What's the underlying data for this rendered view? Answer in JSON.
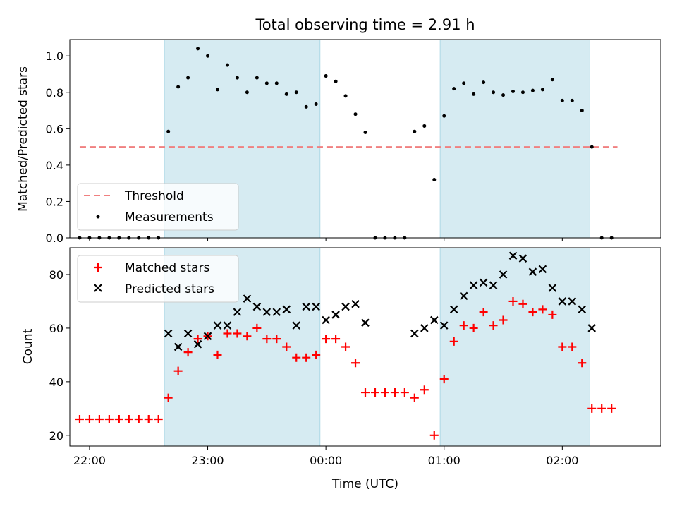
{
  "chart_data": [
    {
      "type": "scatter",
      "title": "Total observing time = 2.91 h",
      "xlabel": "",
      "ylabel": "Matched/Predicted stars",
      "ylim": [
        0,
        1.09
      ],
      "yticks": [
        "0.0",
        "0.2",
        "0.4",
        "0.6",
        "0.8",
        "1.0"
      ],
      "shaded_intervals": [
        [
          "22:38",
          "23:57"
        ],
        [
          "00:58",
          "02:14"
        ]
      ],
      "threshold": {
        "name": "Threshold",
        "y": 0.5,
        "x_from": "21:55",
        "x_to": "02:28",
        "color": "#f08080"
      },
      "series": [
        {
          "name": "Measurements",
          "marker": "dot",
          "color": "#000000",
          "x": [
            "21:55",
            "22:00",
            "22:05",
            "22:10",
            "22:15",
            "22:20",
            "22:25",
            "22:30",
            "22:35",
            "22:40",
            "22:45",
            "22:50",
            "22:55",
            "23:00",
            "23:05",
            "23:10",
            "23:15",
            "23:20",
            "23:25",
            "23:30",
            "23:35",
            "23:40",
            "23:45",
            "23:50",
            "23:55",
            "00:00",
            "00:05",
            "00:10",
            "00:15",
            "00:20",
            "00:25",
            "00:30",
            "00:35",
            "00:40",
            "00:45",
            "00:50",
            "00:55",
            "01:00",
            "01:05",
            "01:10",
            "01:15",
            "01:20",
            "01:25",
            "01:30",
            "01:35",
            "01:40",
            "01:45",
            "01:50",
            "01:55",
            "02:00",
            "02:05",
            "02:10",
            "02:15",
            "02:20",
            "02:25"
          ],
          "y": [
            0,
            0,
            0,
            0,
            0,
            0,
            0,
            0,
            0,
            0.585,
            0.83,
            0.88,
            1.04,
            1.0,
            0.815,
            0.95,
            0.88,
            0.8,
            0.88,
            0.85,
            0.85,
            0.79,
            0.8,
            0.72,
            0.735,
            0.89,
            0.86,
            0.78,
            0.68,
            0.58,
            0,
            0,
            0,
            0,
            0.585,
            0.615,
            0.32,
            0.67,
            0.82,
            0.85,
            0.79,
            0.855,
            0.8,
            0.785,
            0.805,
            0.8,
            0.81,
            0.815,
            0.87,
            0.755,
            0.755,
            0.7,
            0.5,
            0,
            0
          ]
        }
      ]
    },
    {
      "type": "scatter",
      "xlabel": "Time (UTC)",
      "ylabel": "Count",
      "ylim": [
        16,
        90
      ],
      "xticks": [
        "22:00",
        "23:00",
        "00:00",
        "01:00",
        "02:00"
      ],
      "yticks": [
        "20",
        "40",
        "60",
        "80"
      ],
      "shaded_intervals": [
        [
          "22:38",
          "23:57"
        ],
        [
          "00:58",
          "02:14"
        ]
      ],
      "series": [
        {
          "name": "Matched stars",
          "marker": "plus",
          "color": "#ff0000",
          "x": [
            "21:55",
            "22:00",
            "22:05",
            "22:10",
            "22:15",
            "22:20",
            "22:25",
            "22:30",
            "22:35",
            "22:40",
            "22:45",
            "22:50",
            "22:55",
            "23:00",
            "23:05",
            "23:10",
            "23:15",
            "23:20",
            "23:25",
            "23:30",
            "23:35",
            "23:40",
            "23:45",
            "23:50",
            "23:55",
            "00:00",
            "00:05",
            "00:10",
            "00:15",
            "00:20",
            "00:25",
            "00:30",
            "00:35",
            "00:40",
            "00:45",
            "00:50",
            "00:55",
            "01:00",
            "01:05",
            "01:10",
            "01:15",
            "01:20",
            "01:25",
            "01:30",
            "01:35",
            "01:40",
            "01:45",
            "01:50",
            "01:55",
            "02:00",
            "02:05",
            "02:10",
            "02:15",
            "02:20",
            "02:25"
          ],
          "y": [
            26,
            26,
            26,
            26,
            26,
            26,
            26,
            26,
            26,
            34,
            44,
            51,
            56,
            57,
            50,
            58,
            58,
            57,
            60,
            56,
            56,
            53,
            49,
            49,
            50,
            56,
            56,
            53,
            47,
            36,
            36,
            36,
            36,
            36,
            34,
            37,
            20,
            41,
            55,
            61,
            60,
            66,
            61,
            63,
            70,
            69,
            66,
            67,
            65,
            53,
            53,
            47,
            30,
            30,
            30
          ]
        },
        {
          "name": "Predicted stars",
          "marker": "x",
          "color": "#000000",
          "x": [
            "22:40",
            "22:45",
            "22:50",
            "22:55",
            "23:00",
            "23:05",
            "23:10",
            "23:15",
            "23:20",
            "23:25",
            "23:30",
            "23:35",
            "23:40",
            "23:45",
            "23:50",
            "23:55",
            "00:00",
            "00:05",
            "00:10",
            "00:15",
            "00:20",
            "00:45",
            "00:50",
            "00:55",
            "01:00",
            "01:05",
            "01:10",
            "01:15",
            "01:20",
            "01:25",
            "01:30",
            "01:35",
            "01:40",
            "01:45",
            "01:50",
            "01:55",
            "02:00",
            "02:05",
            "02:10",
            "02:15"
          ],
          "y": [
            58,
            53,
            58,
            54,
            57,
            61,
            61,
            66,
            71,
            68,
            66,
            66,
            67,
            61,
            68,
            68,
            63,
            65,
            68,
            69,
            62,
            58,
            60,
            63,
            61,
            67,
            72,
            76,
            77,
            76,
            80,
            87,
            86,
            81,
            82,
            75,
            70,
            70,
            67,
            60
          ]
        }
      ]
    }
  ]
}
